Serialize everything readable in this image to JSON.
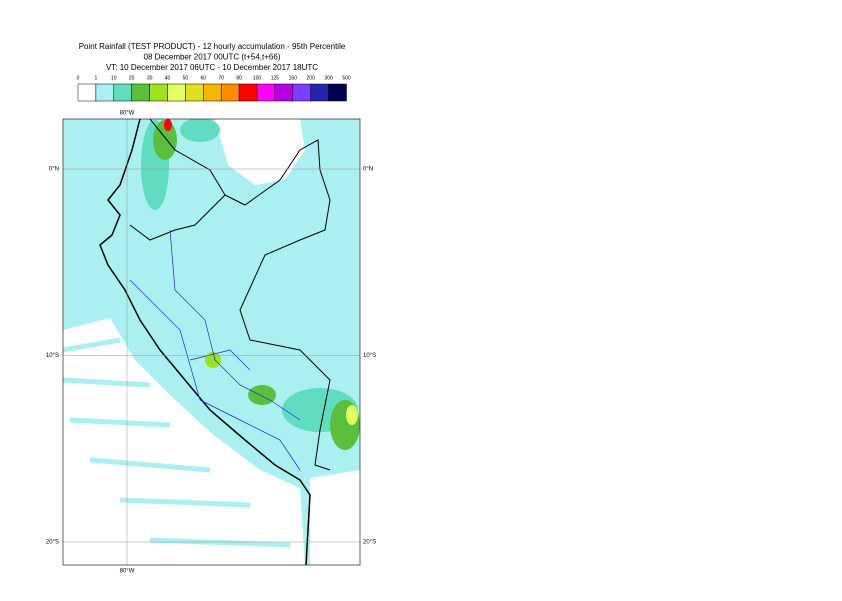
{
  "header": {
    "lines": [
      "Point Rainfall (TEST PRODUCT) - 12 hourly accumulation - 95th Percentile",
      "08 December 2017 00UTC (t+54,t+66)",
      "VT: 10 December 2017 06UTC - 10 December 2017 18UTC"
    ]
  },
  "legend": {
    "labels": [
      "0",
      "1",
      "10",
      "20",
      "30",
      "40",
      "50",
      "60",
      "70",
      "80",
      "100",
      "125",
      "150",
      "200",
      "300",
      "500"
    ],
    "colors": [
      "#ffffff",
      "#aaf0f0",
      "#60dcc0",
      "#5cbf3c",
      "#9de21c",
      "#e4ff60",
      "#e0e020",
      "#f5b800",
      "#ff8c00",
      "#ff0000",
      "#ff00ff",
      "#b400e0",
      "#7a40ff",
      "#2424b0",
      "#000050"
    ]
  },
  "map": {
    "latitudes": [
      "0°N",
      "10°S",
      "20°S"
    ],
    "longitudes": [
      "80°W"
    ]
  }
}
